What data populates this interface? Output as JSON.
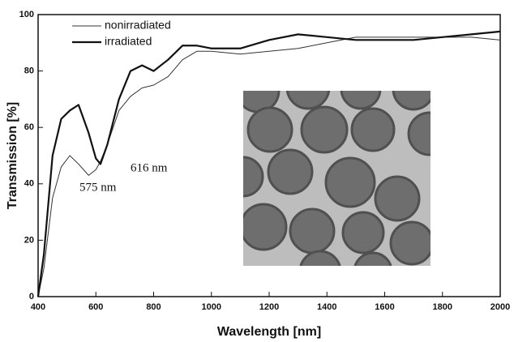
{
  "chart_data": {
    "type": "line",
    "x_label": "Wavelength [nm]",
    "y_label": "Transmission [%]",
    "x": [
      400,
      420,
      450,
      480,
      510,
      540,
      575,
      600,
      616,
      640,
      680,
      720,
      760,
      800,
      850,
      900,
      950,
      1000,
      1100,
      1200,
      1300,
      1400,
      1500,
      1600,
      1700,
      1800,
      1900,
      2000
    ],
    "series": [
      {
        "name": "nonirradiated",
        "color": "#333333",
        "values": [
          0,
          10,
          35,
          46,
          50,
          47,
          43,
          45,
          48,
          54,
          66,
          71,
          74,
          75,
          78,
          84,
          87,
          87,
          86,
          87,
          88,
          90,
          92,
          92,
          92,
          92,
          92,
          91
        ]
      },
      {
        "name": "irradiated",
        "color": "#111111",
        "values": [
          0,
          15,
          50,
          63,
          66,
          68,
          58,
          49,
          47,
          54,
          70,
          80,
          82,
          80,
          84,
          89,
          89,
          88,
          88,
          91,
          93,
          92,
          91,
          91,
          91,
          92,
          93,
          94
        ]
      }
    ],
    "annotations": [
      "575 nm",
      "616 nm"
    ],
    "xlim": [
      400,
      2000
    ],
    "xticks": [
      400,
      600,
      800,
      1000,
      1200,
      1400,
      1600,
      1800,
      2000
    ],
    "ylim": [
      0,
      100
    ],
    "yticks": [
      0,
      20,
      40,
      60,
      80,
      100
    ],
    "legend": "top-left"
  }
}
